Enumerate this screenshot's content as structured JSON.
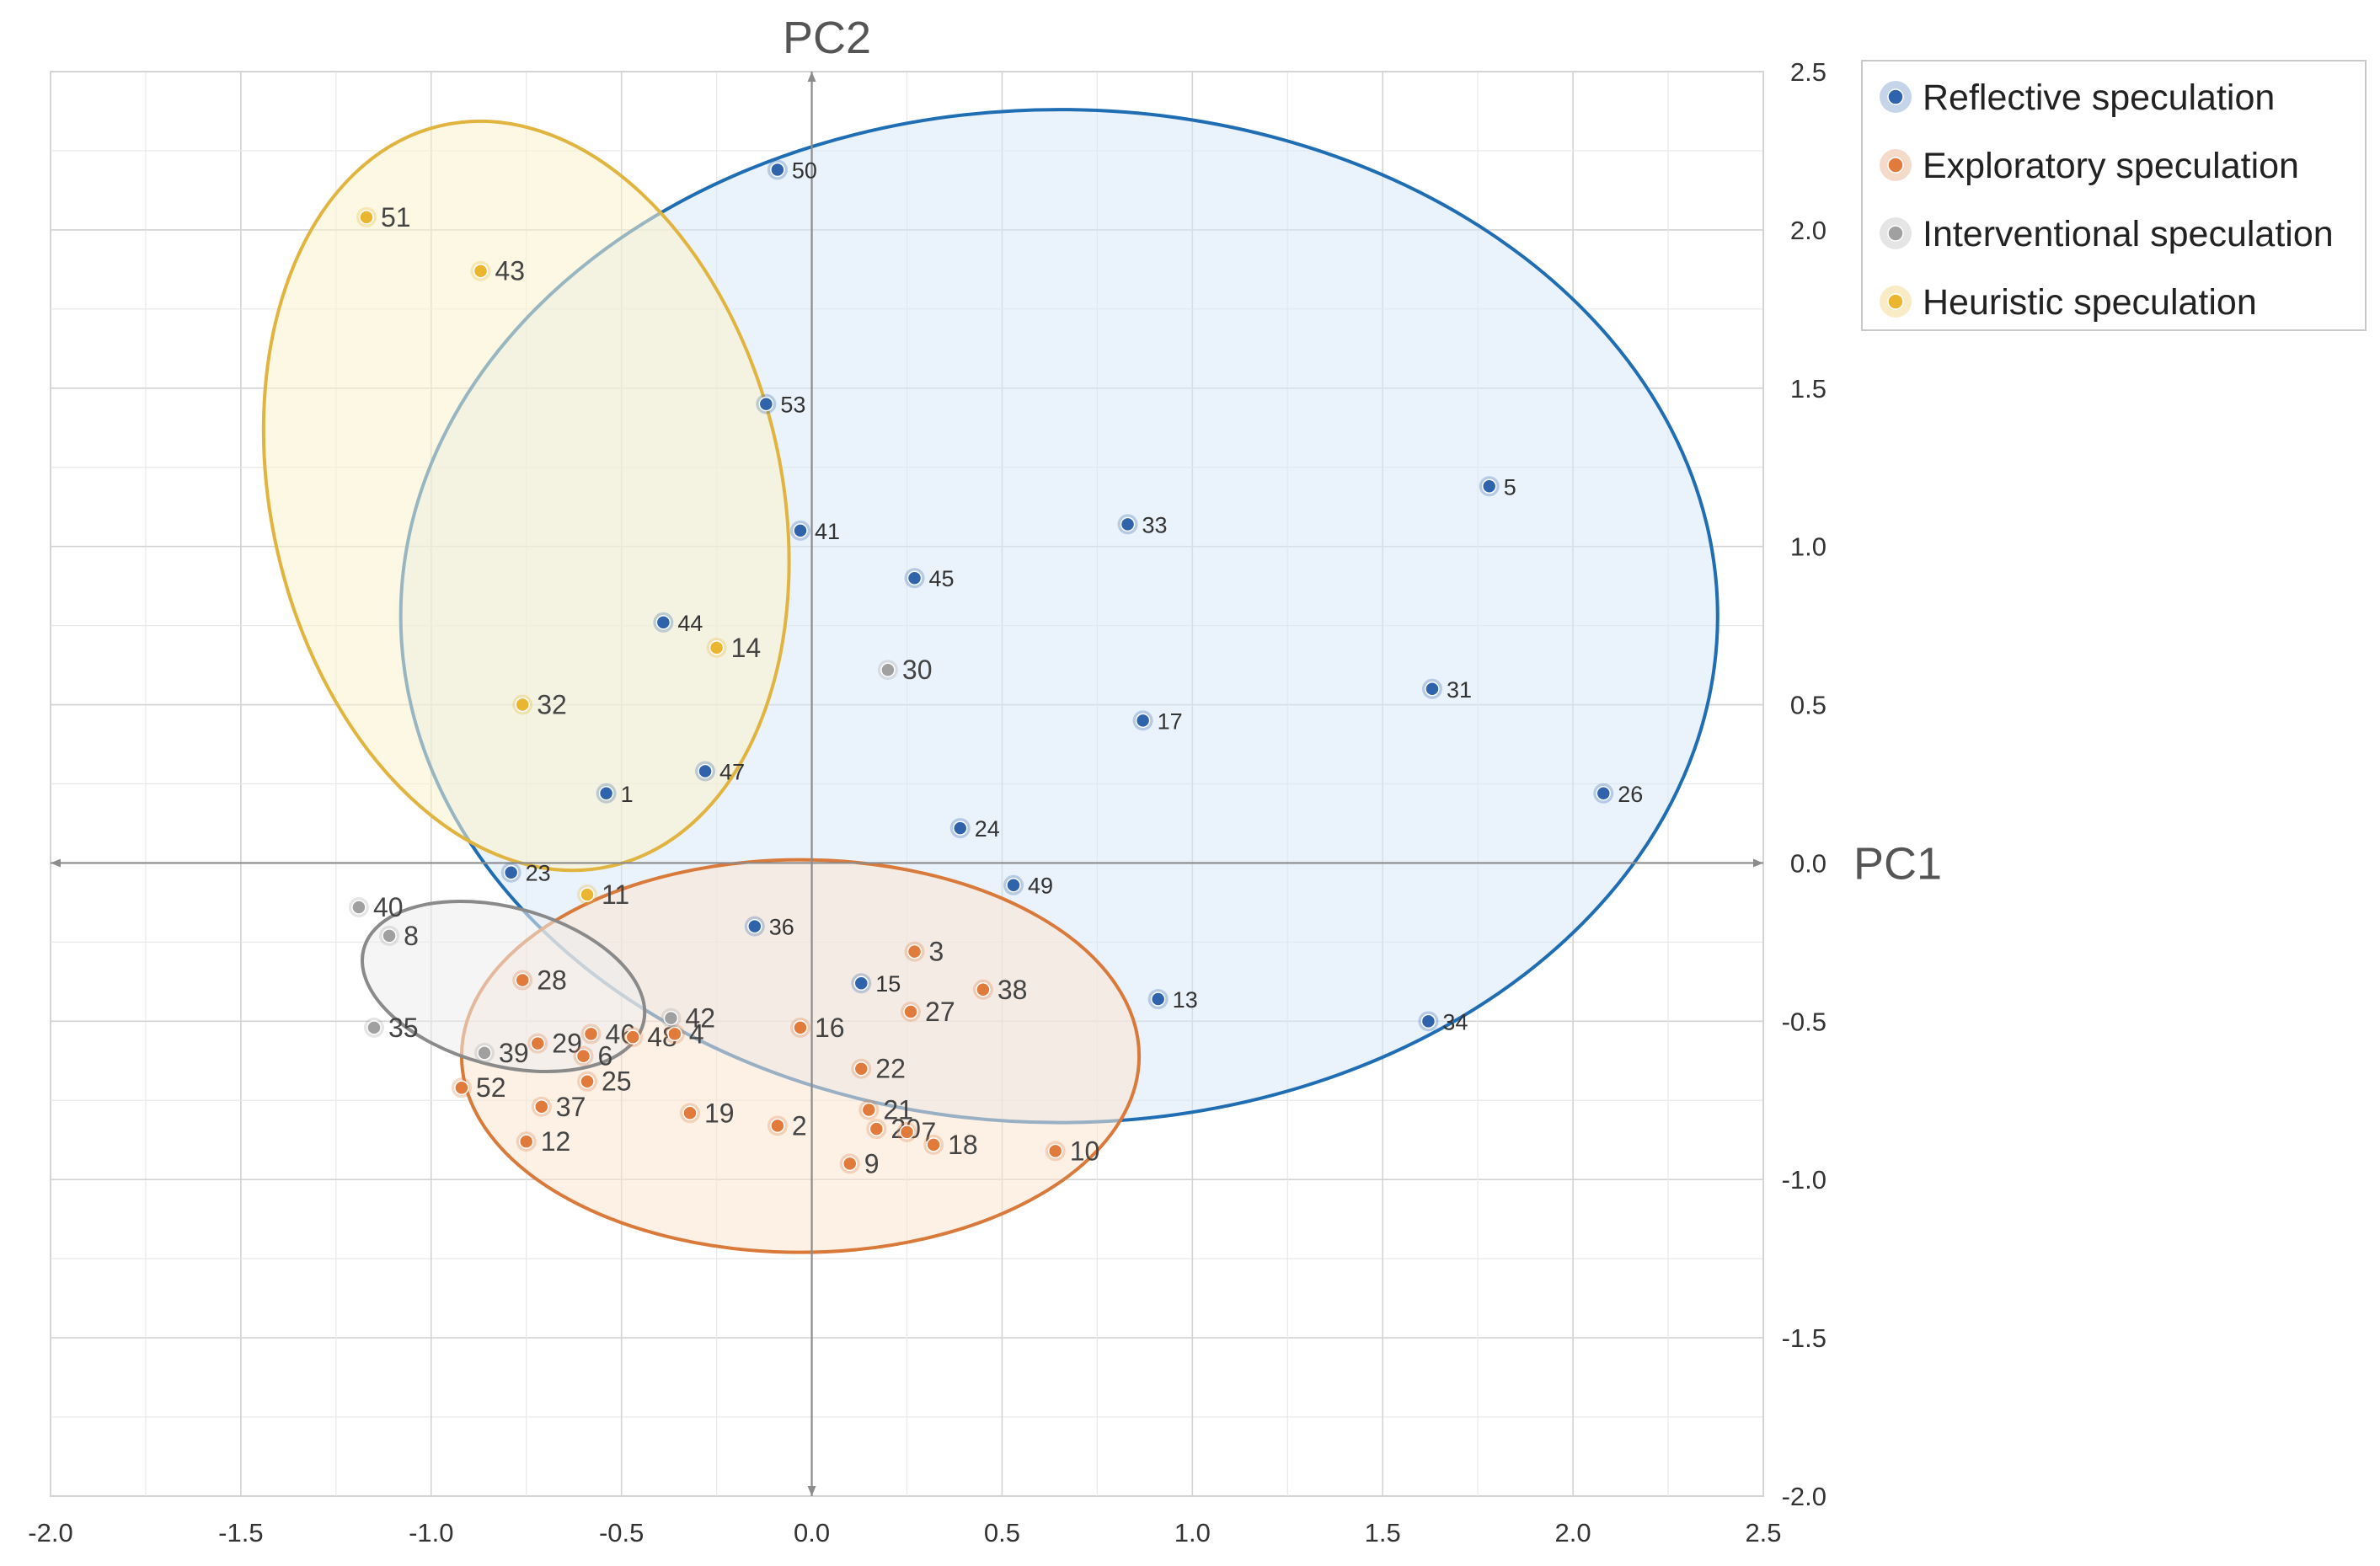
{
  "chart_data": {
    "type": "scatter",
    "title": "",
    "xlabel": "PC1",
    "ylabel": "PC2",
    "xlim": [
      -2.0,
      2.5
    ],
    "ylim": [
      -2.0,
      2.5
    ],
    "x_ticks": [
      "-2.0",
      "-1.5",
      "-1.0",
      "-0.5",
      "0.0",
      "0.5",
      "1.0",
      "1.5",
      "2.0",
      "2.5"
    ],
    "y_ticks": [
      "2.5",
      "2.0",
      "1.5",
      "1.0",
      "0.5",
      "0.0",
      "-0.5",
      "-1.0",
      "-1.5",
      "-2.0"
    ],
    "grid": true,
    "legend_position": "top-right outside",
    "series": [
      {
        "name": "Reflective speculation",
        "color": "#2f64ad",
        "ellipse_color": "#1f6db3",
        "ellipse_fill": "#d9e8f8",
        "ellipse": {
          "cx": 0.65,
          "cy": 0.78,
          "rx": 1.73,
          "ry": 1.6
        },
        "points": [
          {
            "id": "50",
            "x": -0.09,
            "y": 2.19
          },
          {
            "id": "53",
            "x": -0.12,
            "y": 1.45
          },
          {
            "id": "41",
            "x": -0.03,
            "y": 1.05
          },
          {
            "id": "45",
            "x": 0.27,
            "y": 0.9
          },
          {
            "id": "44",
            "x": -0.39,
            "y": 0.76
          },
          {
            "id": "47",
            "x": -0.28,
            "y": 0.29
          },
          {
            "id": "1",
            "x": -0.54,
            "y": 0.22
          },
          {
            "id": "23",
            "x": -0.79,
            "y": -0.03
          },
          {
            "id": "36",
            "x": -0.15,
            "y": -0.2
          },
          {
            "id": "15",
            "x": 0.13,
            "y": -0.38
          },
          {
            "id": "33",
            "x": 0.83,
            "y": 1.07
          },
          {
            "id": "17",
            "x": 0.87,
            "y": 0.45
          },
          {
            "id": "24",
            "x": 0.39,
            "y": 0.11
          },
          {
            "id": "49",
            "x": 0.53,
            "y": -0.07
          },
          {
            "id": "13",
            "x": 0.91,
            "y": -0.43
          },
          {
            "id": "5",
            "x": 1.78,
            "y": 1.19
          },
          {
            "id": "31",
            "x": 1.63,
            "y": 0.55
          },
          {
            "id": "26",
            "x": 2.08,
            "y": 0.22
          },
          {
            "id": "34",
            "x": 1.62,
            "y": -0.5
          }
        ]
      },
      {
        "name": "Exploratory speculation",
        "color": "#e07b3c",
        "ellipse_color": "#d9793a",
        "ellipse_fill": "#fbe5d1",
        "ellipse": {
          "cx": -0.03,
          "cy": -0.61,
          "rx": 0.89,
          "ry": 0.62
        },
        "points": [
          {
            "id": "3",
            "x": 0.27,
            "y": -0.28
          },
          {
            "id": "38",
            "x": 0.45,
            "y": -0.4
          },
          {
            "id": "27",
            "x": 0.26,
            "y": -0.47
          },
          {
            "id": "16",
            "x": -0.03,
            "y": -0.52
          },
          {
            "id": "28",
            "x": -0.76,
            "y": -0.37
          },
          {
            "id": "29",
            "x": -0.72,
            "y": -0.57
          },
          {
            "id": "46",
            "x": -0.58,
            "y": -0.54
          },
          {
            "id": "6",
            "x": -0.6,
            "y": -0.61
          },
          {
            "id": "48",
            "x": -0.47,
            "y": -0.55
          },
          {
            "id": "4",
            "x": -0.36,
            "y": -0.54
          },
          {
            "id": "25",
            "x": -0.59,
            "y": -0.69
          },
          {
            "id": "52",
            "x": -0.92,
            "y": -0.71
          },
          {
            "id": "37",
            "x": -0.71,
            "y": -0.77
          },
          {
            "id": "12",
            "x": -0.75,
            "y": -0.88
          },
          {
            "id": "19",
            "x": -0.32,
            "y": -0.79
          },
          {
            "id": "2",
            "x": -0.09,
            "y": -0.83
          },
          {
            "id": "22",
            "x": 0.13,
            "y": -0.65
          },
          {
            "id": "21",
            "x": 0.15,
            "y": -0.78
          },
          {
            "id": "20",
            "x": 0.17,
            "y": -0.84
          },
          {
            "id": "7",
            "x": 0.25,
            "y": -0.85
          },
          {
            "id": "18",
            "x": 0.32,
            "y": -0.89
          },
          {
            "id": "9",
            "x": 0.1,
            "y": -0.95
          },
          {
            "id": "10",
            "x": 0.64,
            "y": -0.91
          }
        ]
      },
      {
        "name": "Interventional speculation",
        "color": "#a0a0a0",
        "ellipse_color": "#8a8a8a",
        "ellipse_fill": "#ececec",
        "ellipse": {
          "cx": -0.81,
          "cy": -0.39,
          "rx": 0.38,
          "ry": 0.25,
          "rotate": 15
        },
        "points": [
          {
            "id": "30",
            "x": 0.2,
            "y": 0.61
          },
          {
            "id": "40",
            "x": -1.19,
            "y": -0.14
          },
          {
            "id": "8",
            "x": -1.11,
            "y": -0.23
          },
          {
            "id": "35",
            "x": -1.15,
            "y": -0.52
          },
          {
            "id": "39",
            "x": -0.86,
            "y": -0.6
          },
          {
            "id": "42",
            "x": -0.37,
            "y": -0.49
          }
        ]
      },
      {
        "name": "Heuristic speculation",
        "color": "#ebb62f",
        "ellipse_color": "#e0b43e",
        "ellipse_fill": "#fbf3cc",
        "ellipse": {
          "cx": -0.75,
          "cy": 1.16,
          "rx": 0.67,
          "ry": 1.2,
          "rotate": -13
        },
        "points": [
          {
            "id": "51",
            "x": -1.17,
            "y": 2.04
          },
          {
            "id": "43",
            "x": -0.87,
            "y": 1.87
          },
          {
            "id": "14",
            "x": -0.25,
            "y": 0.68
          },
          {
            "id": "32",
            "x": -0.76,
            "y": 0.5
          },
          {
            "id": "11",
            "x": -0.59,
            "y": -0.1
          }
        ]
      }
    ]
  }
}
